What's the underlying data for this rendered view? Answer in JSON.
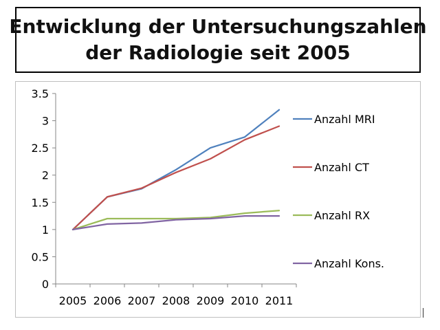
{
  "title": {
    "line1": "Entwicklung der Untersuchungszahlen",
    "line2": "der Radiologie seit 2005"
  },
  "chart_data": {
    "type": "line",
    "title": "Entwicklung der Untersuchungszahlen der Radiologie seit 2005",
    "x": [
      "2005",
      "2006",
      "2007",
      "2008",
      "2009",
      "2010",
      "2011"
    ],
    "xlabel": "",
    "ylabel": "",
    "ylim": [
      0,
      3.5
    ],
    "yticks": [
      "0",
      "0.5",
      "1",
      "1.5",
      "2",
      "2.5",
      "3",
      "3.5"
    ],
    "legend_position": "right",
    "series": [
      {
        "name": "Anzahl MRI",
        "color": "#4f81bd",
        "values": [
          1.0,
          1.6,
          1.75,
          2.1,
          2.5,
          2.7,
          3.2
        ]
      },
      {
        "name": "Anzahl CT",
        "color": "#c0504d",
        "values": [
          1.0,
          1.6,
          1.76,
          2.05,
          2.3,
          2.65,
          2.9
        ]
      },
      {
        "name": "Anzahl RX",
        "color": "#9bbb59",
        "values": [
          1.0,
          1.2,
          1.2,
          1.2,
          1.22,
          1.3,
          1.35
        ]
      },
      {
        "name": "Anzahl Kons.",
        "color": "#8064a2",
        "values": [
          1.0,
          1.1,
          1.12,
          1.18,
          1.2,
          1.25,
          1.25
        ]
      }
    ]
  }
}
